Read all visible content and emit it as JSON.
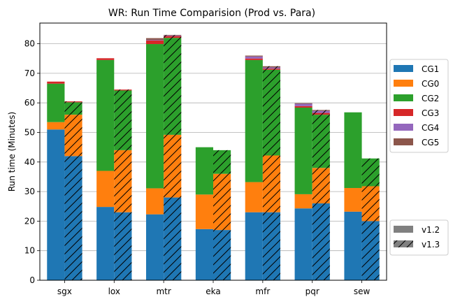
{
  "chart_data": {
    "type": "bar",
    "title": "WR: Run Time Comparision (Prod vs. Para)",
    "xlabel": "",
    "ylabel": "Run time (Minutes)",
    "ylim": [
      0,
      87
    ],
    "yticks": [
      0,
      10,
      20,
      30,
      40,
      50,
      60,
      70,
      80
    ],
    "grid": "horizontal",
    "categories": [
      "sgx",
      "lox",
      "mtr",
      "eka",
      "mfr",
      "pqr",
      "sew"
    ],
    "stack_order": [
      "CG1",
      "CG0",
      "CG2",
      "CG3",
      "CG4",
      "CG5"
    ],
    "colors": {
      "CG1": "#1f77b4",
      "CG0": "#ff7f0e",
      "CG2": "#2ca02c",
      "CG3": "#d62728",
      "CG4": "#9467bd",
      "CG5": "#8c564b"
    },
    "legend_components": {
      "placement": "right",
      "entries": [
        "CG1",
        "CG0",
        "CG2",
        "CG3",
        "CG4",
        "CG5"
      ]
    },
    "legend_versions": {
      "placement": "bottom-right",
      "entries": [
        {
          "label": "v1.2",
          "hatch": false
        },
        {
          "label": "v1.3",
          "hatch": true
        }
      ]
    },
    "series": [
      {
        "name": "v1.2",
        "hatch": false,
        "stacks": [
          {
            "CG1": 51.0,
            "CG0": 2.5,
            "CG2": 13.0,
            "CG3": 0.7,
            "CG4": 0.0,
            "CG5": 0.0
          },
          {
            "CG1": 24.8,
            "CG0": 12.2,
            "CG2": 37.5,
            "CG3": 0.6,
            "CG4": 0.0,
            "CG5": 0.0
          },
          {
            "CG1": 22.3,
            "CG0": 8.8,
            "CG2": 48.8,
            "CG3": 1.2,
            "CG4": 0.2,
            "CG5": 0.6
          },
          {
            "CG1": 17.3,
            "CG0": 11.7,
            "CG2": 16.0,
            "CG3": 0.0,
            "CG4": 0.0,
            "CG5": 0.0
          },
          {
            "CG1": 23.0,
            "CG0": 10.2,
            "CG2": 41.3,
            "CG3": 0.5,
            "CG4": 0.7,
            "CG5": 0.3
          },
          {
            "CG1": 24.3,
            "CG0": 4.8,
            "CG2": 29.3,
            "CG3": 0.5,
            "CG4": 0.8,
            "CG5": 0.2
          },
          {
            "CG1": 23.2,
            "CG0": 8.0,
            "CG2": 25.6,
            "CG3": 0.0,
            "CG4": 0.0,
            "CG5": 0.0
          }
        ]
      },
      {
        "name": "v1.3",
        "hatch": true,
        "stacks": [
          {
            "CG1": 42.0,
            "CG0": 14.0,
            "CG2": 4.2,
            "CG3": 0.3,
            "CG4": 0.0,
            "CG5": 0.0
          },
          {
            "CG1": 23.0,
            "CG0": 21.0,
            "CG2": 20.2,
            "CG3": 0.3,
            "CG4": 0.0,
            "CG5": 0.0
          },
          {
            "CG1": 28.0,
            "CG0": 21.2,
            "CG2": 32.8,
            "CG3": 0.6,
            "CG4": 0.2,
            "CG5": 0.2
          },
          {
            "CG1": 17.0,
            "CG0": 19.0,
            "CG2": 8.0,
            "CG3": 0.0,
            "CG4": 0.0,
            "CG5": 0.0
          },
          {
            "CG1": 23.0,
            "CG0": 19.2,
            "CG2": 29.0,
            "CG3": 0.4,
            "CG4": 0.4,
            "CG5": 0.4
          },
          {
            "CG1": 26.0,
            "CG0": 12.0,
            "CG2": 18.0,
            "CG3": 0.6,
            "CG4": 0.7,
            "CG5": 0.3
          },
          {
            "CG1": 20.0,
            "CG0": 11.8,
            "CG2": 9.4,
            "CG3": 0.0,
            "CG4": 0.0,
            "CG5": 0.0
          }
        ]
      }
    ]
  }
}
